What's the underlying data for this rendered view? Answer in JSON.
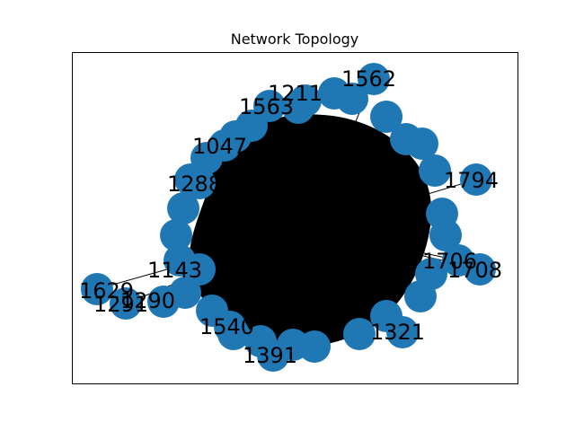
{
  "title": "Network Topology",
  "colors": {
    "node_fill": "#1f77b4",
    "edge": "#000000",
    "frame": "#000000",
    "background": "#ffffff"
  },
  "graph": {
    "nodes": [
      {
        "label": "1563"
      },
      {
        "label": "1562"
      },
      {
        "label": "1047"
      },
      {
        "label": "1794"
      },
      {
        "label": "1708"
      },
      {
        "label": "1706"
      },
      {
        "label": "1321"
      },
      {
        "label": "1391"
      },
      {
        "label": "1629"
      },
      {
        "label": "1290"
      },
      {
        "label": "1291"
      },
      {
        "label": "1540"
      },
      {
        "label": "1288"
      },
      {
        "label": "1211"
      },
      {
        "label": "1143"
      }
    ]
  }
}
